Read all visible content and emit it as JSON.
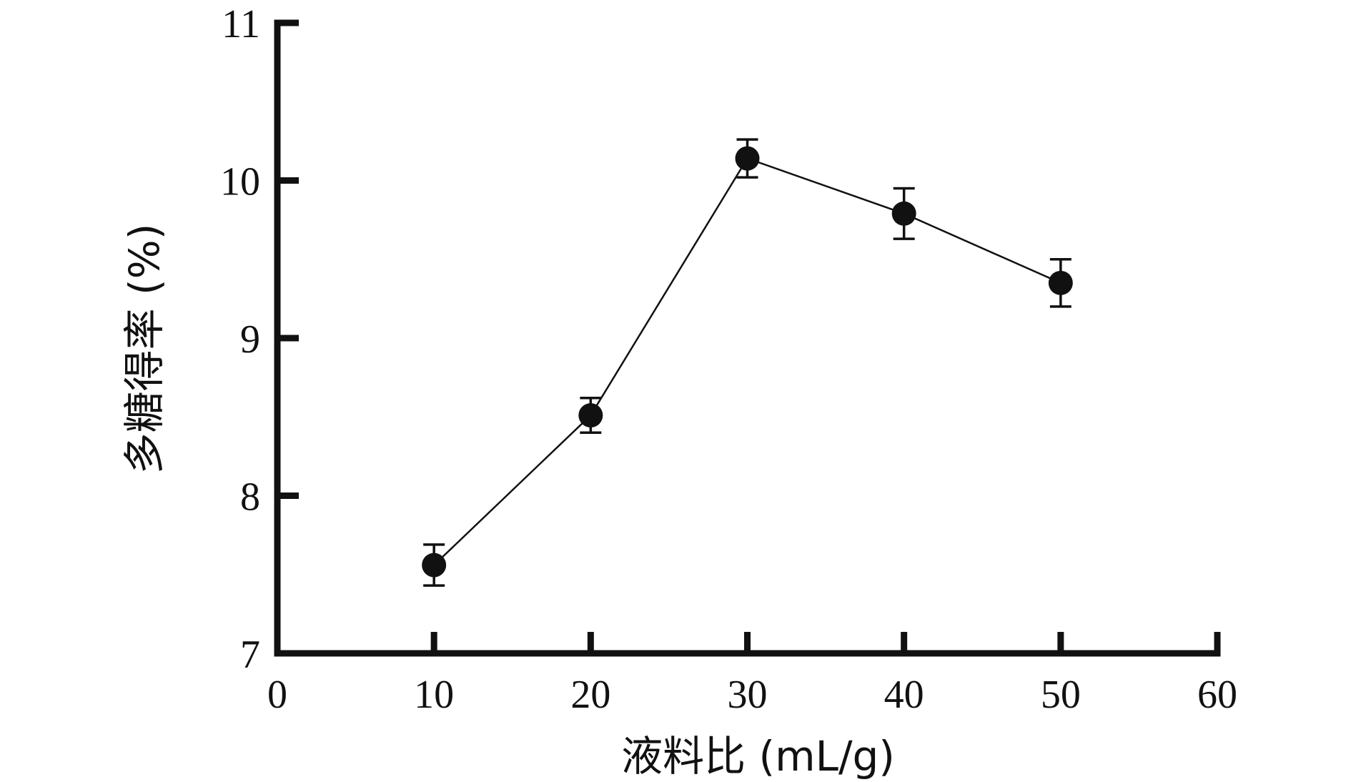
{
  "chart_data": {
    "type": "line",
    "title": "",
    "xlabel": "液料比 (mL/g)",
    "ylabel": "多糖得率 (%)",
    "xlim": [
      0,
      60
    ],
    "ylim": [
      7,
      11
    ],
    "xticks": [
      "0",
      "10",
      "20",
      "30",
      "40",
      "50",
      "60"
    ],
    "yticks": [
      "7",
      "8",
      "9",
      "10",
      "11"
    ],
    "grid": false,
    "legend": "none",
    "series": [
      {
        "x": [
          10,
          20,
          30,
          40,
          50
        ],
        "y": [
          7.56,
          8.51,
          10.14,
          9.79,
          9.35
        ],
        "error": [
          0.13,
          0.11,
          0.12,
          0.16,
          0.15
        ],
        "color": "#111111",
        "marker": "filled-circle"
      }
    ]
  }
}
